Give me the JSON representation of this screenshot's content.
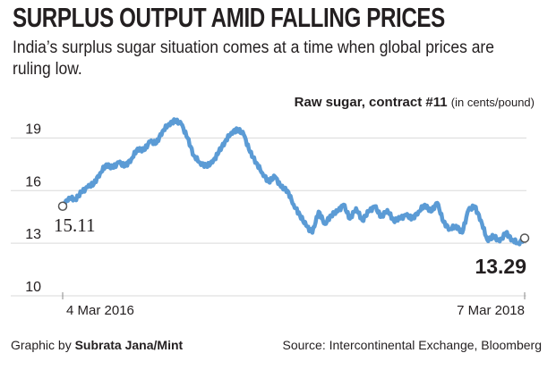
{
  "header": {
    "title": "SURPLUS OUTPUT AMID FALLING PRICES",
    "subtitle": "India’s surplus sugar situation comes at a time when global prices are ruling low."
  },
  "series_label": {
    "name": "Raw sugar, contract #11",
    "unit": "(in cents/pound)"
  },
  "footer": {
    "credit_prefix": "Graphic by",
    "credit_name": "Subrata Jana/Mint",
    "source": "Source: Intercontinental Exchange, Bloomberg"
  },
  "colors": {
    "line": "#5b9bd5",
    "grid": "#d9d9d9",
    "text": "#231f20"
  },
  "chart_data": {
    "type": "line",
    "title": "",
    "xlabel": "",
    "ylabel": "",
    "ylim": [
      10,
      20.5
    ],
    "yticks": [
      10,
      13,
      16,
      19
    ],
    "x_tick_labels": [
      "4 Mar 2016",
      "7 Mar 2018"
    ],
    "grid": true,
    "series": [
      {
        "name": "Raw sugar, contract #11",
        "values": [
          15.11,
          15.6,
          15.5,
          15.9,
          16.2,
          16.4,
          17.0,
          17.5,
          17.3,
          17.6,
          17.4,
          17.8,
          18.4,
          18.3,
          18.8,
          18.7,
          19.4,
          19.8,
          20.0,
          19.8,
          19.0,
          18.0,
          17.6,
          17.4,
          17.6,
          18.2,
          18.8,
          19.3,
          19.5,
          19.2,
          18.2,
          17.6,
          17.0,
          16.5,
          16.8,
          16.2,
          16.0,
          15.2,
          14.6,
          14.0,
          13.6,
          14.8,
          14.1,
          14.6,
          14.8,
          15.2,
          14.4,
          15.0,
          14.3,
          14.8,
          15.1,
          14.5,
          14.9,
          14.3,
          14.4,
          14.6,
          14.4,
          14.8,
          15.2,
          14.8,
          15.3,
          14.2,
          13.8,
          14.0,
          13.6,
          14.9,
          15.1,
          14.3,
          13.2,
          13.4,
          13.1,
          13.6,
          13.2,
          13.0,
          13.29
        ],
        "start_value_label": "15.11",
        "end_value_label": "13.29"
      }
    ]
  }
}
